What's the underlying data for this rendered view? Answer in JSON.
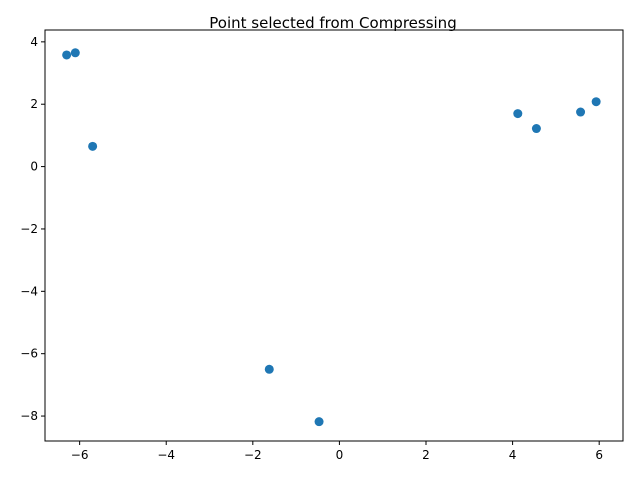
{
  "chart_data": {
    "type": "scatter",
    "title": "Point selected from Compressing",
    "xlabel": "",
    "ylabel": "",
    "xlim": [
      -6.8,
      6.55
    ],
    "ylim": [
      -8.8,
      4.38
    ],
    "xticks": [
      -6,
      -4,
      -2,
      0,
      2,
      4,
      6
    ],
    "yticks": [
      4,
      2,
      0,
      -2,
      -4,
      -6,
      -8
    ],
    "xtick_labels": [
      "−6",
      "−4",
      "−2",
      "0",
      "2",
      "4",
      "6"
    ],
    "ytick_labels": [
      "4",
      "2",
      "0",
      "−2",
      "−4",
      "−6",
      "−8"
    ],
    "grid": false,
    "marker_color": "#1f77b4",
    "points": [
      {
        "x": -6.3,
        "y": 3.58
      },
      {
        "x": -6.1,
        "y": 3.65
      },
      {
        "x": -5.7,
        "y": 0.65
      },
      {
        "x": -1.62,
        "y": -6.5
      },
      {
        "x": -0.47,
        "y": -8.18
      },
      {
        "x": 4.12,
        "y": 1.7
      },
      {
        "x": 4.55,
        "y": 1.22
      },
      {
        "x": 5.57,
        "y": 1.75
      },
      {
        "x": 5.93,
        "y": 2.08
      }
    ]
  }
}
